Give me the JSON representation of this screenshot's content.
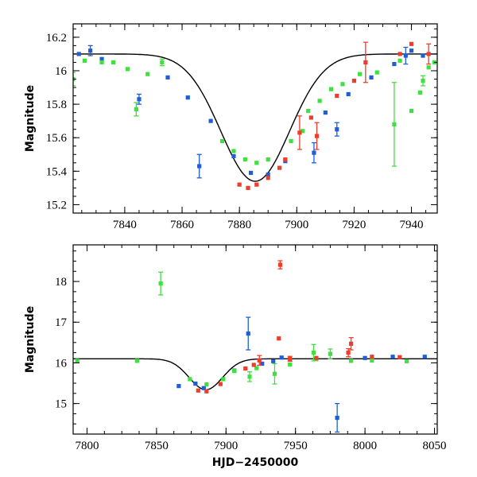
{
  "chart_data": [
    {
      "type": "scatter",
      "panel": "top",
      "title": "",
      "xlabel": "",
      "ylabel": "Magnitude",
      "xlim": [
        7822,
        7949
      ],
      "ylim": [
        16.28,
        15.15
      ],
      "y_inverted": true,
      "xticks": [
        7840,
        7860,
        7880,
        7900,
        7920,
        7940
      ],
      "yticks": [
        15.2,
        15.4,
        15.6,
        15.8,
        16,
        16.2
      ],
      "xtick_labels": [
        "7840",
        "7860",
        "7880",
        "7900",
        "7920",
        "7940"
      ],
      "ytick_labels": [
        "15.2",
        "15.4",
        "15.6",
        "15.8",
        "16",
        "16.2"
      ],
      "model": {
        "baseline": 16.1,
        "peak": 15.34,
        "t0": 7885.5,
        "width": 12
      },
      "series": [
        {
          "color": "#1f5fd6",
          "points": [
            [
              7824,
              16.1,
              0
            ],
            [
              7828,
              16.12,
              0.03
            ],
            [
              7832,
              16.07,
              0
            ],
            [
              7845,
              15.83,
              0.03
            ],
            [
              7855,
              15.96,
              0
            ],
            [
              7862,
              15.84,
              0
            ],
            [
              7866,
              15.43,
              0.07
            ],
            [
              7870,
              15.7,
              0
            ],
            [
              7878,
              15.49,
              0
            ],
            [
              7884,
              15.39,
              0
            ],
            [
              7890,
              15.38,
              0
            ],
            [
              7896,
              15.46,
              0
            ],
            [
              7906,
              15.51,
              0.06
            ],
            [
              7910,
              15.75,
              0
            ],
            [
              7914,
              15.65,
              0.04
            ],
            [
              7918,
              15.86,
              0
            ],
            [
              7926,
              15.96,
              0
            ],
            [
              7934,
              16.04,
              0
            ],
            [
              7938,
              16.09,
              0.05
            ],
            [
              7940,
              16.12,
              0
            ],
            [
              7944,
              16.09,
              0
            ]
          ]
        },
        {
          "color": "#3fe03f",
          "points": [
            [
              7822,
              15.95,
              0.04
            ],
            [
              7826,
              16.06,
              0
            ],
            [
              7832,
              16.05,
              0
            ],
            [
              7836,
              16.05,
              0
            ],
            [
              7841,
              16.01,
              0
            ],
            [
              7844,
              15.77,
              0.04
            ],
            [
              7848,
              15.98,
              0
            ],
            [
              7853,
              16.05,
              0.02
            ],
            [
              7874,
              15.58,
              0
            ],
            [
              7878,
              15.52,
              0
            ],
            [
              7882,
              15.47,
              0
            ],
            [
              7886,
              15.45,
              0
            ],
            [
              7890,
              15.47,
              0
            ],
            [
              7898,
              15.58,
              0
            ],
            [
              7902,
              15.64,
              0
            ],
            [
              7904,
              15.76,
              0
            ],
            [
              7908,
              15.82,
              0
            ],
            [
              7912,
              15.89,
              0
            ],
            [
              7916,
              15.92,
              0
            ],
            [
              7922,
              15.98,
              0
            ],
            [
              7928,
              15.99,
              0
            ],
            [
              7934,
              15.68,
              0.25
            ],
            [
              7936,
              16.06,
              0
            ],
            [
              7940,
              15.76,
              0
            ],
            [
              7943,
              15.87,
              0
            ],
            [
              7944,
              15.94,
              0.03
            ],
            [
              7946,
              16.02,
              0
            ],
            [
              7948,
              16.05,
              0
            ]
          ]
        },
        {
          "color": "#f03c2a",
          "points": [
            [
              7880,
              15.32,
              0
            ],
            [
              7883,
              15.3,
              0
            ],
            [
              7886,
              15.32,
              0
            ],
            [
              7890,
              15.36,
              0
            ],
            [
              7894,
              15.42,
              0
            ],
            [
              7896,
              15.47,
              0
            ],
            [
              7901,
              15.63,
              0.1
            ],
            [
              7905,
              15.72,
              0
            ],
            [
              7907,
              15.61,
              0.08
            ],
            [
              7914,
              15.85,
              0
            ],
            [
              7920,
              15.94,
              0
            ],
            [
              7924,
              16.05,
              0.12
            ],
            [
              7936,
              16.1,
              0
            ],
            [
              7940,
              16.16,
              0
            ],
            [
              7946,
              16.1,
              0.06
            ]
          ]
        }
      ]
    },
    {
      "type": "scatter",
      "panel": "bottom",
      "title": "",
      "xlabel": "HJD−2450000",
      "ylabel": "Magnitude",
      "xlim": [
        7790,
        8052
      ],
      "ylim": [
        18.9,
        14.25
      ],
      "y_inverted": true,
      "xticks": [
        7800,
        7850,
        7900,
        7950,
        8000,
        8050
      ],
      "yticks": [
        15,
        16,
        17,
        18
      ],
      "xtick_labels": [
        "7800",
        "7850",
        "7900",
        "7950",
        "8000",
        "8050"
      ],
      "ytick_labels": [
        "15",
        "16",
        "17",
        "18"
      ],
      "model": {
        "baseline": 16.1,
        "peak": 15.34,
        "t0": 7885.5,
        "width": 12
      },
      "series": [
        {
          "color": "#1f5fd6",
          "points": [
            [
              7866,
              15.43,
              0
            ],
            [
              7878,
              15.49,
              0
            ],
            [
              7884,
              15.38,
              0
            ],
            [
              7906,
              15.81,
              0
            ],
            [
              7916,
              16.72,
              0.4
            ],
            [
              7926,
              15.98,
              0
            ],
            [
              7934,
              16.04,
              0
            ],
            [
              7940,
              16.13,
              0
            ],
            [
              7980,
              14.65,
              0.35
            ],
            [
              8000,
              16.12,
              0
            ],
            [
              8020,
              16.15,
              0
            ],
            [
              8043,
              16.15,
              0
            ]
          ]
        },
        {
          "color": "#3fe03f",
          "points": [
            [
              7793,
              16.05,
              0
            ],
            [
              7836,
              16.05,
              0
            ],
            [
              7853,
              17.95,
              0.28
            ],
            [
              7874,
              15.6,
              0
            ],
            [
              7886,
              15.47,
              0
            ],
            [
              7898,
              15.6,
              0
            ],
            [
              7906,
              15.8,
              0
            ],
            [
              7917,
              15.66,
              0.12
            ],
            [
              7922,
              15.87,
              0
            ],
            [
              7935,
              15.73,
              0.25
            ],
            [
              7946,
              15.96,
              0
            ],
            [
              7963,
              16.25,
              0.2
            ],
            [
              7965,
              16.09,
              0
            ],
            [
              7975,
              16.22,
              0.12
            ],
            [
              7990,
              16.05,
              0
            ],
            [
              8005,
              16.06,
              0
            ],
            [
              8030,
              16.04,
              0
            ]
          ]
        },
        {
          "color": "#f03c2a",
          "points": [
            [
              7880,
              15.32,
              0
            ],
            [
              7886,
              15.3,
              0
            ],
            [
              7896,
              15.48,
              0
            ],
            [
              7914,
              15.86,
              0
            ],
            [
              7920,
              15.95,
              0
            ],
            [
              7924,
              16.06,
              0.12
            ],
            [
              7938,
              16.6,
              0
            ],
            [
              7939,
              18.41,
              0.1
            ],
            [
              7946,
              16.1,
              0.06
            ],
            [
              7965,
              16.12,
              0
            ],
            [
              7988,
              16.25,
              0.1
            ],
            [
              7990,
              16.47,
              0.15
            ],
            [
              8005,
              16.15,
              0
            ],
            [
              8025,
              16.14,
              0
            ]
          ]
        }
      ]
    }
  ]
}
